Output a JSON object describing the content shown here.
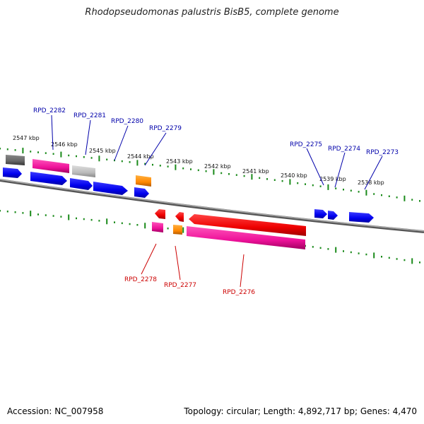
{
  "title": "Rhodopseudomonas palustris BisB5, complete genome",
  "footer": {
    "accession": "Accession: NC_007958",
    "summary": "Topology: circular; Length: 4,892,717 bp; Genes: 4,470"
  },
  "colors": {
    "background": "#ffffff",
    "backbone": "#777777",
    "tick": "#1a8a1a",
    "top_label": "#0000aa",
    "bottom_label": "#cc0000",
    "cds_blue": "#0000ee",
    "cds_magenta": "#ee1199",
    "cds_red": "#ee0000",
    "cds_orange": "#ff8800",
    "cds_gray": "#bbbbbb",
    "cds_darkgray": "#666666"
  },
  "ruler": {
    "labels": [
      "2547 kbp",
      "2546 kbp",
      "2545 kbp",
      "2544 kbp",
      "2543 kbp",
      "2542 kbp",
      "2541 kbp",
      "2540 kbp",
      "2539 kbp",
      "2538 kbp"
    ]
  },
  "gene_labels_top": [
    "RPD_2282",
    "RPD_2281",
    "RPD_2280",
    "RPD_2279",
    "RPD_2275",
    "RPD_2274",
    "RPD_2273"
  ],
  "gene_labels_bottom": [
    "RPD_2278",
    "RPD_2277",
    "RPD_2276"
  ]
}
